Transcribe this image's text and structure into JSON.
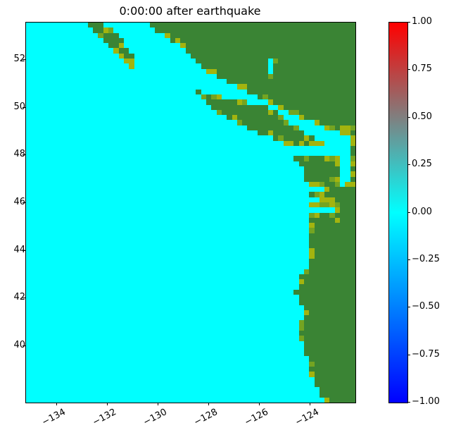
{
  "title": "0:00:00 after earthquake",
  "chart_data": {
    "type": "heatmap",
    "title": "0:00:00 after earthquake",
    "xlabel": "",
    "ylabel": "",
    "legend": "none",
    "grid": false,
    "xlim": [
      -135.22,
      -122.22
    ],
    "ylim": [
      37.63,
      53.57
    ],
    "xticks": {
      "values": [
        -134,
        -132,
        -130,
        -128,
        -126,
        -124
      ],
      "labels": [
        "−134",
        "−132",
        "−130",
        "−128",
        "−126",
        "−124"
      ]
    },
    "yticks": {
      "values": [
        52,
        50,
        48,
        46,
        44,
        42,
        40
      ],
      "labels": [
        "52",
        "50",
        "48",
        "46",
        "44",
        "42",
        "40"
      ]
    },
    "colorbar": {
      "min": -1.0,
      "max": 1.0,
      "tick_values": [
        1.0,
        0.75,
        0.5,
        0.25,
        0.0,
        -0.25,
        -0.5,
        -0.75,
        -1.0
      ],
      "tick_labels": [
        "1.00",
        "0.75",
        "0.50",
        "0.25",
        "0.00",
        "−0.25",
        "−0.50",
        "−0.75",
        "−1.00"
      ],
      "cmap_stops": [
        {
          "value": 1.0,
          "color": "#ff0000"
        },
        {
          "value": 0.0,
          "color": "#00ffff"
        },
        {
          "value": -1.0,
          "color": "#0000ff"
        }
      ]
    },
    "colors": {
      "water": "#00ffff",
      "land": "#3a8434",
      "shore": [
        "#a3b40f",
        "#74a422"
      ]
    },
    "field_value_everywhere": 0.0,
    "map": {
      "grid_cols": 64,
      "grid_rows": 74,
      "speckle_seed": 42,
      "land_polygons": [
        [
          [
            -130.44,
            53.56
          ],
          [
            -129.83,
            53.06
          ],
          [
            -129.28,
            52.7
          ],
          [
            -128.94,
            52.47
          ],
          [
            -128.78,
            52.11
          ],
          [
            -128.31,
            51.73
          ],
          [
            -127.94,
            51.46
          ],
          [
            -127.47,
            51.17
          ],
          [
            -126.83,
            50.81
          ],
          [
            -126.22,
            50.49
          ],
          [
            -125.53,
            50.13
          ],
          [
            -124.83,
            49.81
          ],
          [
            -124.28,
            49.51
          ],
          [
            -123.72,
            49.28
          ],
          [
            -123.17,
            49.1
          ],
          [
            -122.22,
            48.92
          ],
          [
            -122.22,
            53.56
          ]
        ],
        [
          [
            -128.72,
            50.87
          ],
          [
            -128.39,
            50.57
          ],
          [
            -128.03,
            50.13
          ],
          [
            -127.56,
            49.75
          ],
          [
            -127.0,
            49.39
          ],
          [
            -126.44,
            49.13
          ],
          [
            -125.89,
            48.89
          ],
          [
            -125.33,
            48.63
          ],
          [
            -124.89,
            48.45
          ],
          [
            -124.72,
            48.18
          ],
          [
            -124.64,
            47.95
          ],
          [
            -124.42,
            47.62
          ],
          [
            -124.28,
            47.24
          ],
          [
            -124.11,
            46.73
          ],
          [
            -124.08,
            46.29
          ],
          [
            -123.97,
            45.91
          ],
          [
            -124.06,
            45.61
          ],
          [
            -123.94,
            45.32
          ],
          [
            -124.06,
            44.73
          ],
          [
            -124.03,
            44.28
          ],
          [
            -124.08,
            43.84
          ],
          [
            -124.14,
            43.31
          ],
          [
            -124.39,
            42.9
          ],
          [
            -124.36,
            42.66
          ],
          [
            -124.58,
            42.27
          ],
          [
            -124.44,
            42.04
          ],
          [
            -124.28,
            41.62
          ],
          [
            -124.22,
            41.12
          ],
          [
            -124.42,
            40.95
          ],
          [
            -124.53,
            40.59
          ],
          [
            -124.39,
            40.38
          ],
          [
            -124.28,
            40.0
          ],
          [
            -124.11,
            39.41
          ],
          [
            -123.97,
            38.82
          ],
          [
            -123.67,
            38.17
          ],
          [
            -123.39,
            37.63
          ],
          [
            -122.22,
            37.63
          ],
          [
            -122.22,
            49.01
          ]
        ]
      ],
      "water_polygons": [
        [
          [
            -128.31,
            50.93
          ],
          [
            -126.64,
            50.49
          ],
          [
            -126.64,
            50.22
          ],
          [
            -128.03,
            50.55
          ],
          [
            -128.39,
            50.69
          ]
        ],
        [
          [
            -125.31,
            50.04
          ],
          [
            -124.56,
            49.66
          ],
          [
            -123.22,
            49.04
          ],
          [
            -123.22,
            48.48
          ],
          [
            -124.08,
            48.86
          ],
          [
            -125.36,
            49.72
          ]
        ],
        [
          [
            -125.64,
            52.17
          ],
          [
            -125.39,
            52.11
          ],
          [
            -125.44,
            51.34
          ],
          [
            -125.67,
            51.43
          ]
        ],
        [
          [
            -123.39,
            49.04
          ],
          [
            -122.47,
            48.86
          ],
          [
            -122.47,
            48.39
          ],
          [
            -123.39,
            48.39
          ]
        ],
        [
          [
            -122.92,
            48.63
          ],
          [
            -122.5,
            48.63
          ],
          [
            -122.5,
            46.91
          ],
          [
            -122.72,
            46.77
          ],
          [
            -122.92,
            46.97
          ]
        ],
        [
          [
            -125.06,
            48.45
          ],
          [
            -122.83,
            48.3
          ],
          [
            -122.83,
            47.92
          ],
          [
            -125.06,
            48.03
          ]
        ],
        [
          [
            -124.11,
            46.71
          ],
          [
            -123.47,
            46.65
          ],
          [
            -123.47,
            46.47
          ],
          [
            -124.11,
            46.53
          ]
        ],
        [
          [
            -124.11,
            46.26
          ],
          [
            -123.64,
            46.2
          ],
          [
            -123.64,
            46.06
          ],
          [
            -124.11,
            46.11
          ]
        ],
        [
          [
            -124.14,
            45.76
          ],
          [
            -122.97,
            45.7
          ],
          [
            -122.97,
            45.49
          ],
          [
            -124.14,
            45.55
          ]
        ]
      ],
      "island_polygons": [
        [
          [
            -132.83,
            53.56
          ],
          [
            -132.28,
            53.56
          ],
          [
            -131.78,
            53.23
          ],
          [
            -131.44,
            52.82
          ],
          [
            -131.11,
            52.35
          ],
          [
            -130.94,
            51.99
          ],
          [
            -131.03,
            51.55
          ],
          [
            -131.33,
            51.82
          ],
          [
            -131.92,
            52.56
          ],
          [
            -132.53,
            53.18
          ],
          [
            -132.89,
            53.47
          ]
        ]
      ],
      "shore_hotspots": [
        [
          -123.72,
          49.16,
          -122.22,
          46.65
        ],
        [
          -124.28,
          46.85,
          -122.89,
          45.32
        ],
        [
          -123.22,
          45.97,
          -122.83,
          44.97
        ],
        [
          -124.5,
          41.18,
          -124.08,
          40.59
        ]
      ]
    }
  }
}
